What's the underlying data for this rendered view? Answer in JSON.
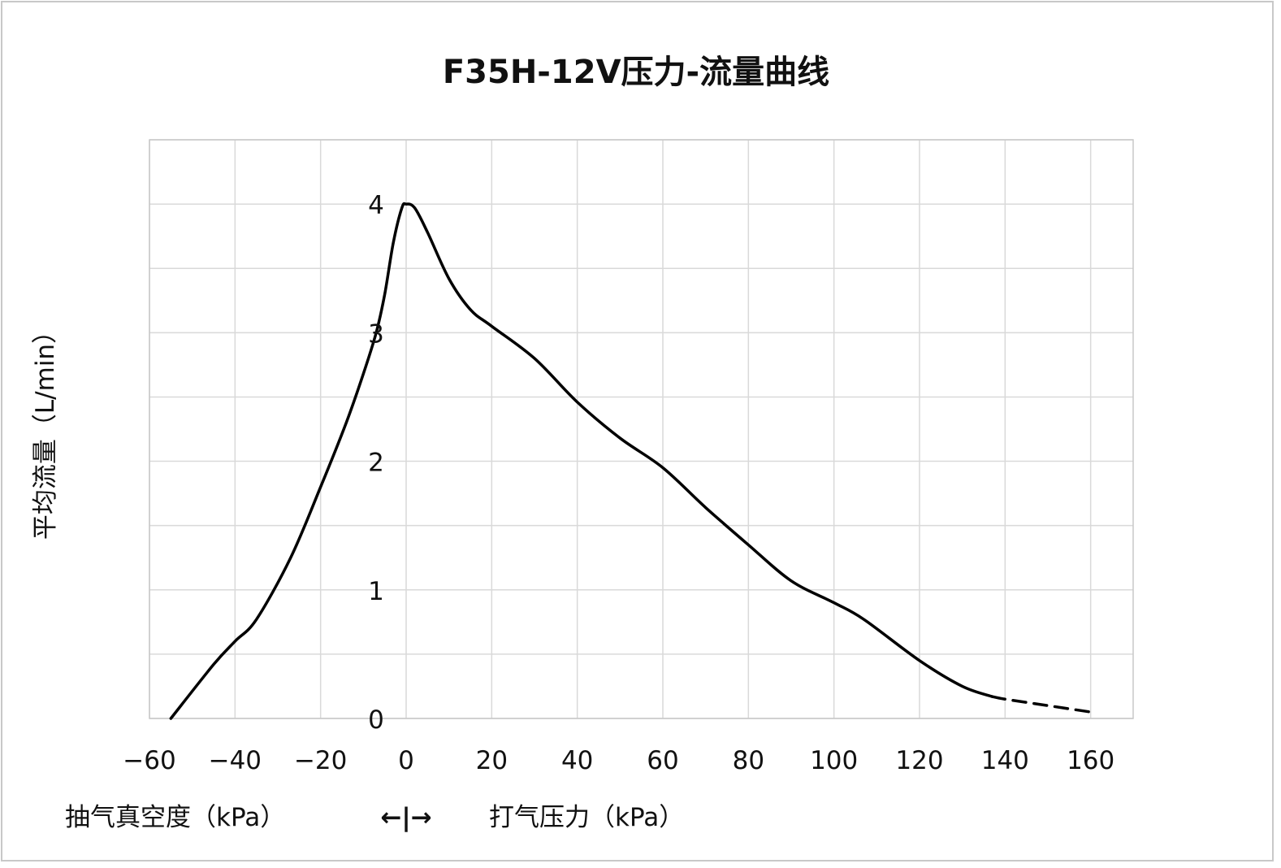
{
  "chart_data": {
    "type": "line",
    "title": "F35H-12V压力-流量曲线",
    "ylabel": "平均流量（L/min）",
    "xlabel_left": "抽气真空度（kPa）",
    "xlabel_arrow": "←|→",
    "xlabel_right": "打气压力（kPa）",
    "xlim": [
      -60,
      170
    ],
    "ylim": [
      0,
      4.5
    ],
    "xticks": [
      -60,
      -40,
      -20,
      0,
      20,
      40,
      60,
      80,
      100,
      120,
      140,
      160
    ],
    "yticks": [
      0,
      1,
      2,
      3,
      4
    ],
    "grid": true,
    "grid_y_step": 0.5,
    "line_color": "#000000",
    "grid_color": "#d9d9d9",
    "series": [
      {
        "style": "solid",
        "x": [
          -55,
          -45,
          -40,
          -35,
          -27,
          -20,
          -14,
          -10,
          -7,
          -5,
          -3,
          -1,
          0,
          2,
          5,
          10,
          15,
          20,
          30,
          40,
          50,
          60,
          70,
          80,
          90,
          100,
          107,
          120,
          130,
          137
        ],
        "y": [
          0,
          0.42,
          0.6,
          0.77,
          1.25,
          1.8,
          2.3,
          2.68,
          3.0,
          3.3,
          3.7,
          3.97,
          4.0,
          3.97,
          3.78,
          3.42,
          3.18,
          3.05,
          2.8,
          2.46,
          2.18,
          1.95,
          1.64,
          1.35,
          1.07,
          0.9,
          0.77,
          0.45,
          0.25,
          0.17
        ]
      },
      {
        "style": "dashed",
        "x": [
          137,
          140,
          150,
          160
        ],
        "y": [
          0.17,
          0.15,
          0.1,
          0.05
        ]
      }
    ]
  }
}
